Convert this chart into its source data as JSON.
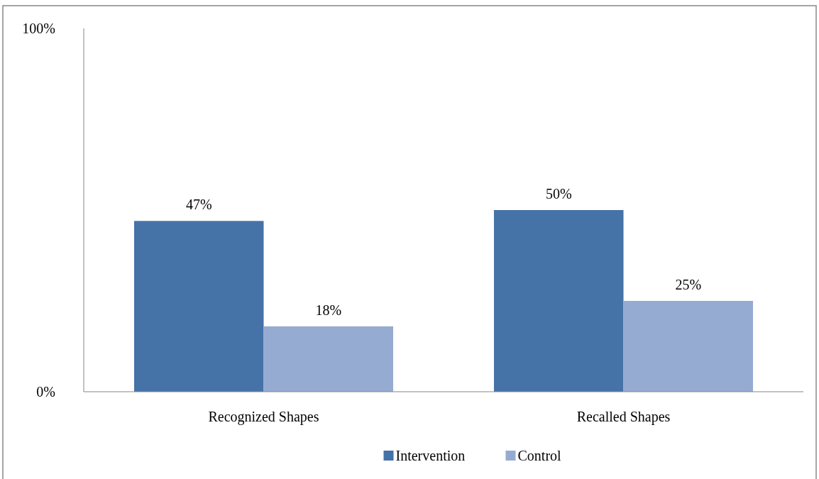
{
  "chart_data": {
    "type": "bar",
    "categories": [
      "Recognized Shapes",
      "Recalled Shapes"
    ],
    "series": [
      {
        "name": "Intervention",
        "color": "#4572a7",
        "values": [
          47,
          50
        ]
      },
      {
        "name": "Control",
        "color": "#96abd1",
        "values": [
          18,
          25
        ]
      }
    ],
    "ylim": [
      0,
      100
    ],
    "yticks": [
      {
        "value": 0,
        "label": "0%"
      },
      {
        "value": 100,
        "label": "100%"
      }
    ],
    "value_labels": [
      [
        "47%",
        "50%"
      ],
      [
        "18%",
        "25%"
      ]
    ],
    "legend": "bottom",
    "grid": false
  }
}
